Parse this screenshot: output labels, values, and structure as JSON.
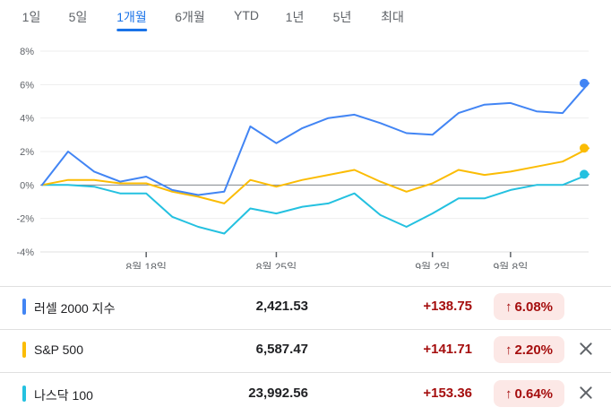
{
  "range_tabs": [
    {
      "label": "1일",
      "active": false
    },
    {
      "label": "5일",
      "active": false
    },
    {
      "label": "1개월",
      "active": true
    },
    {
      "label": "6개월",
      "active": false
    },
    {
      "label": "YTD",
      "active": false
    },
    {
      "label": "1년",
      "active": false
    },
    {
      "label": "5년",
      "active": false
    },
    {
      "label": "최대",
      "active": false
    }
  ],
  "chart_data": {
    "type": "line",
    "x_tick_labels": [
      "8월 18일",
      "8월 25일",
      "9월 2일",
      "9월 8일"
    ],
    "y_ticks": [
      "8%",
      "6%",
      "4%",
      "2%",
      "0%",
      "-2%",
      "-4%"
    ],
    "ylim": [
      -4,
      8
    ],
    "baseline": 0,
    "series": [
      {
        "name": "러셀 2000 지수",
        "color": "#4285f4",
        "values": [
          0.0,
          2.0,
          0.8,
          0.2,
          0.5,
          -0.3,
          -0.6,
          -0.4,
          3.5,
          2.5,
          3.4,
          4.0,
          4.2,
          3.7,
          3.1,
          3.0,
          4.3,
          4.8,
          4.9,
          4.4,
          4.3,
          6.08
        ]
      },
      {
        "name": "S&P 500",
        "color": "#fbbc04",
        "values": [
          0.0,
          0.3,
          0.3,
          0.1,
          0.1,
          -0.4,
          -0.7,
          -1.1,
          0.3,
          -0.1,
          0.3,
          0.6,
          0.9,
          0.2,
          -0.4,
          0.1,
          0.9,
          0.6,
          0.8,
          1.1,
          1.4,
          2.2
        ]
      },
      {
        "name": "나스닥 100",
        "color": "#24c1e0",
        "values": [
          0.0,
          0.0,
          -0.1,
          -0.5,
          -0.5,
          -1.9,
          -2.5,
          -2.9,
          -1.4,
          -1.7,
          -1.3,
          -1.1,
          -0.5,
          -1.8,
          -2.5,
          -1.7,
          -0.8,
          -0.8,
          -0.3,
          0.0,
          0.0,
          0.64
        ]
      }
    ]
  },
  "rows": [
    {
      "name": "러셀 2000 지수",
      "price": "2,421.53",
      "change": "+138.75",
      "pct": "6.08%",
      "color": "#4285f4",
      "removable": false
    },
    {
      "name": "S&P 500",
      "price": "6,587.47",
      "change": "+141.71",
      "pct": "2.20%",
      "color": "#fbbc04",
      "removable": true
    },
    {
      "name": "나스닥 100",
      "price": "23,992.56",
      "change": "+153.36",
      "pct": "0.64%",
      "color": "#24c1e0",
      "removable": true
    }
  ],
  "icons": {
    "up_arrow": "arrow-up-icon",
    "close": "close-icon"
  }
}
